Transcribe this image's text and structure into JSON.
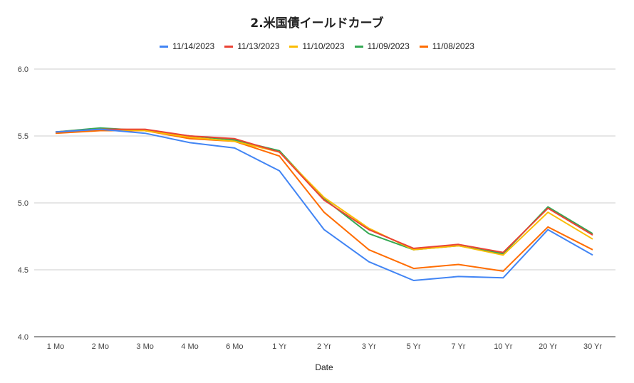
{
  "chart_data": {
    "type": "line",
    "title": "2.米国債イールドカーブ",
    "xlabel": "Date",
    "ylabel": "",
    "categories": [
      "1 Mo",
      "2 Mo",
      "3 Mo",
      "4 Mo",
      "6 Mo",
      "1 Yr",
      "2 Yr",
      "3 Yr",
      "5 Yr",
      "7 Yr",
      "10 Yr",
      "20 Yr",
      "30 Yr"
    ],
    "ylim": [
      4.0,
      6.0
    ],
    "yticks": [
      "4.0",
      "4.5",
      "5.0",
      "5.5",
      "6.0"
    ],
    "grid": true,
    "legend_position": "top",
    "series": [
      {
        "name": "11/14/2023",
        "color": "#4285f4",
        "values": [
          5.53,
          5.55,
          5.52,
          5.45,
          5.41,
          5.24,
          4.8,
          4.56,
          4.42,
          4.45,
          4.44,
          4.8,
          4.61
        ]
      },
      {
        "name": "11/13/2023",
        "color": "#ea4335",
        "values": [
          5.53,
          5.55,
          5.55,
          5.5,
          5.48,
          5.38,
          5.02,
          4.8,
          4.66,
          4.69,
          4.63,
          4.96,
          4.76
        ]
      },
      {
        "name": "11/10/2023",
        "color": "#fbbc04",
        "values": [
          5.53,
          5.55,
          5.54,
          5.49,
          5.46,
          5.38,
          5.04,
          4.81,
          4.65,
          4.68,
          4.61,
          4.93,
          4.73
        ]
      },
      {
        "name": "11/09/2023",
        "color": "#34a853",
        "values": [
          5.53,
          5.56,
          5.54,
          5.5,
          5.47,
          5.39,
          5.03,
          4.77,
          4.65,
          4.68,
          4.62,
          4.97,
          4.77
        ]
      },
      {
        "name": "11/08/2023",
        "color": "#ff6d01",
        "values": [
          5.52,
          5.54,
          5.54,
          5.48,
          5.46,
          5.35,
          4.93,
          4.65,
          4.51,
          4.54,
          4.49,
          4.82,
          4.65
        ]
      }
    ]
  }
}
